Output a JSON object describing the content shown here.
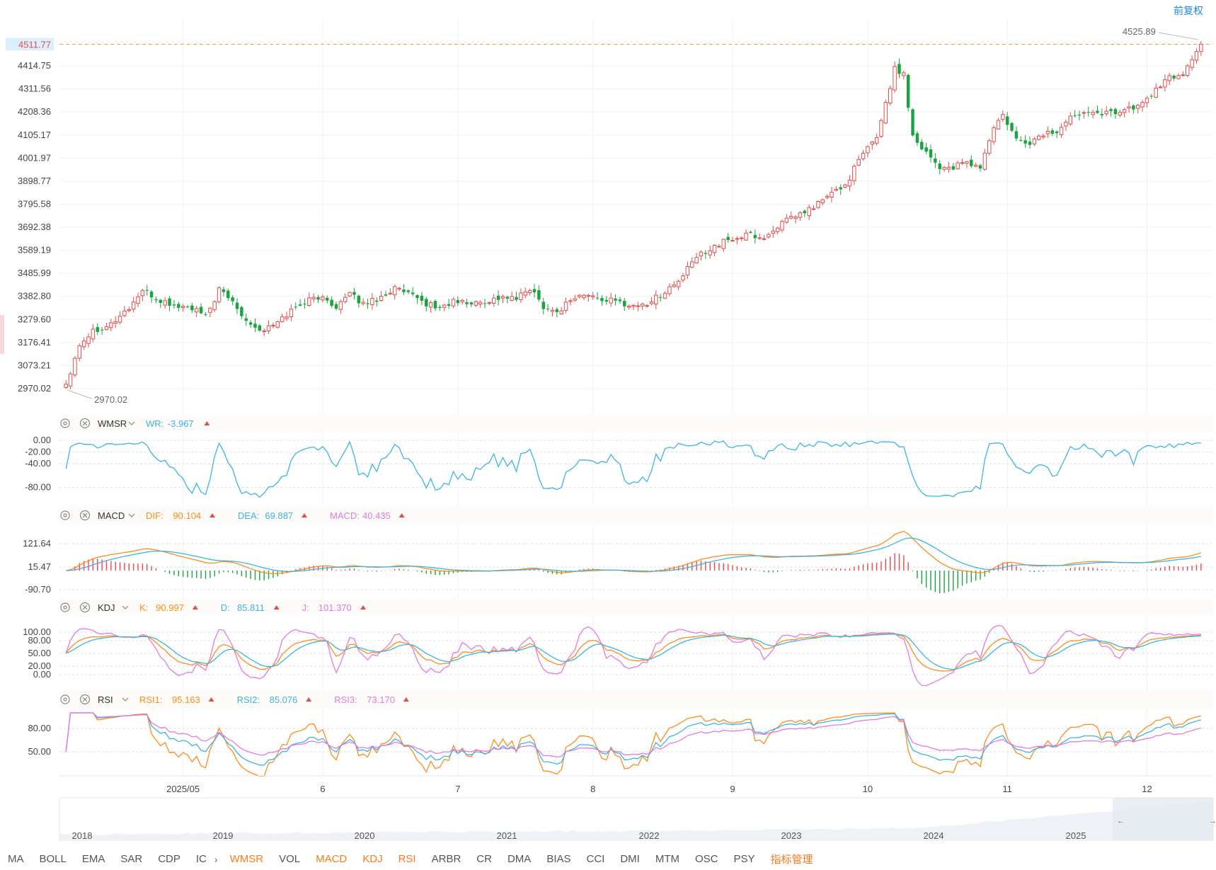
{
  "adjust_label": "前复权",
  "price_axis": {
    "ticks": [
      "4414.75",
      "4311.56",
      "4208.36",
      "4105.17",
      "4001.97",
      "3898.77",
      "3795.58",
      "3692.38",
      "3589.19",
      "3485.99",
      "3382.80",
      "3279.60",
      "3176.41",
      "3073.21",
      "2970.02"
    ],
    "current_price": "4511.77",
    "high_label": "4525.89",
    "low_label": "2970.02"
  },
  "date_axis": [
    "2025/05",
    "6",
    "7",
    "8",
    "9",
    "10",
    "11",
    "12"
  ],
  "overview_years": [
    "2018",
    "2019",
    "2020",
    "2021",
    "2022",
    "2023",
    "2024",
    "2025"
  ],
  "indicators": {
    "wmsr": {
      "name": "WMSR",
      "label": "WR:",
      "value": "-3.967",
      "ticks": [
        "0.00",
        "-20.00",
        "-40.00",
        "-80.00"
      ]
    },
    "macd": {
      "name": "MACD",
      "dif_label": "DIF:",
      "dif": "90.104",
      "dea_label": "DEA:",
      "dea": "69.887",
      "macd_label": "MACD:",
      "macd": "40.435",
      "ticks": [
        "121.64",
        "15.47",
        "-90.70"
      ]
    },
    "kdj": {
      "name": "KDJ",
      "k_label": "K:",
      "k": "90.997",
      "d_label": "D:",
      "d": "85.811",
      "j_label": "J:",
      "j": "101.370",
      "ticks": [
        "100.00",
        "80.00",
        "50.00",
        "20.00",
        "0.00"
      ]
    },
    "rsi": {
      "name": "RSI",
      "r1_label": "RSI1:",
      "r1": "95.163",
      "r2_label": "RSI2:",
      "r2": "85.076",
      "r3_label": "RSI3:",
      "r3": "73.170",
      "ticks": [
        "80.00",
        "50.00"
      ]
    }
  },
  "toolbar": [
    {
      "label": "MA",
      "active": false
    },
    {
      "label": "BOLL",
      "active": false
    },
    {
      "label": "EMA",
      "active": false
    },
    {
      "label": "SAR",
      "active": false
    },
    {
      "label": "CDP",
      "active": false
    },
    {
      "label": "IC",
      "active": false
    },
    {
      "label": "WMSR",
      "active": true
    },
    {
      "label": "VOL",
      "active": false
    },
    {
      "label": "MACD",
      "active": true
    },
    {
      "label": "KDJ",
      "active": true
    },
    {
      "label": "RSI",
      "active": true
    },
    {
      "label": "ARBR",
      "active": false
    },
    {
      "label": "CR",
      "active": false
    },
    {
      "label": "DMA",
      "active": false
    },
    {
      "label": "BIAS",
      "active": false
    },
    {
      "label": "CCI",
      "active": false
    },
    {
      "label": "DMI",
      "active": false
    },
    {
      "label": "MTM",
      "active": false
    },
    {
      "label": "OSC",
      "active": false
    },
    {
      "label": "PSY",
      "active": false
    },
    {
      "label": "指标管理",
      "active": true
    }
  ],
  "colors": {
    "up": "#e84a4a",
    "down": "#1aa33f",
    "orange": "#ff8c1a",
    "blue": "#3cb4e6",
    "pink": "#e27ae2",
    "grid": "#eef1f4"
  },
  "chart_data": {
    "type": "candlestick",
    "y_range": [
      2970.02,
      4525.89
    ],
    "close_path_keypoints": [
      [
        0,
        2990
      ],
      [
        3,
        3170
      ],
      [
        6,
        3230
      ],
      [
        10,
        3260
      ],
      [
        14,
        3330
      ],
      [
        17,
        3410
      ],
      [
        20,
        3370
      ],
      [
        24,
        3340
      ],
      [
        28,
        3330
      ],
      [
        31,
        3290
      ],
      [
        34,
        3410
      ],
      [
        37,
        3360
      ],
      [
        40,
        3280
      ],
      [
        43,
        3230
      ],
      [
        46,
        3250
      ],
      [
        50,
        3320
      ],
      [
        53,
        3360
      ],
      [
        56,
        3380
      ],
      [
        60,
        3340
      ],
      [
        63,
        3390
      ],
      [
        66,
        3350
      ],
      [
        70,
        3380
      ],
      [
        73,
        3420
      ],
      [
        76,
        3390
      ],
      [
        80,
        3350
      ],
      [
        83,
        3330
      ],
      [
        86,
        3360
      ],
      [
        90,
        3350
      ],
      [
        93,
        3360
      ],
      [
        97,
        3380
      ],
      [
        100,
        3370
      ],
      [
        103,
        3420
      ],
      [
        106,
        3340
      ],
      [
        109,
        3310
      ],
      [
        112,
        3370
      ],
      [
        115,
        3390
      ],
      [
        119,
        3370
      ],
      [
        122,
        3360
      ],
      [
        126,
        3340
      ],
      [
        129,
        3350
      ],
      [
        132,
        3390
      ],
      [
        136,
        3450
      ],
      [
        140,
        3560
      ],
      [
        144,
        3610
      ],
      [
        148,
        3640
      ],
      [
        152,
        3660
      ],
      [
        155,
        3640
      ],
      [
        158,
        3700
      ],
      [
        162,
        3740
      ],
      [
        165,
        3770
      ],
      [
        169,
        3830
      ],
      [
        173,
        3880
      ],
      [
        176,
        3990
      ],
      [
        180,
        4100
      ],
      [
        184,
        4400
      ],
      [
        186,
        4380
      ],
      [
        188,
        4100
      ],
      [
        191,
        4030
      ],
      [
        194,
        3960
      ],
      [
        197,
        3960
      ],
      [
        200,
        3980
      ],
      [
        203,
        3960
      ],
      [
        206,
        4140
      ],
      [
        208,
        4190
      ],
      [
        211,
        4080
      ],
      [
        214,
        4070
      ],
      [
        217,
        4110
      ],
      [
        220,
        4120
      ],
      [
        224,
        4200
      ],
      [
        228,
        4220
      ],
      [
        231,
        4200
      ],
      [
        235,
        4220
      ],
      [
        238,
        4230
      ],
      [
        241,
        4290
      ],
      [
        245,
        4360
      ],
      [
        248,
        4380
      ],
      [
        250,
        4450
      ],
      [
        252,
        4512
      ]
    ]
  }
}
